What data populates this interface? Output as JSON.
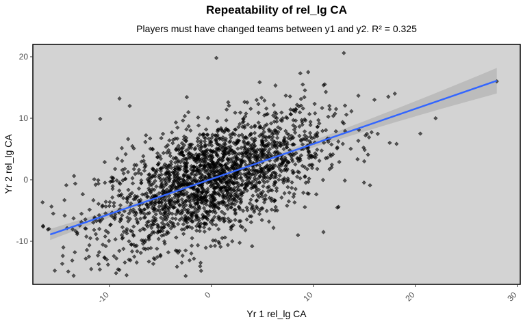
{
  "chart_data": {
    "type": "scatter",
    "title": "Repeatability of rel_lg CA",
    "subtitle": "Players must have changed teams between y1 and y2. R² = 0.325",
    "xlabel": "Yr 1 rel_lg CA",
    "ylabel": "Yr 2 rel_lg CA",
    "xlim": [
      -17.5,
      30.3
    ],
    "ylim": [
      -17.0,
      22.0
    ],
    "xticks": [
      -10,
      0,
      10,
      20,
      30
    ],
    "xtick_labels": [
      "-10",
      "0",
      "10",
      "20",
      "30"
    ],
    "yticks": [
      -10,
      0,
      10,
      20
    ],
    "ytick_labels": [
      "-10",
      "0",
      "10",
      "20"
    ],
    "grid": false,
    "legend": "none",
    "colors": {
      "panel_background": "#d3d3d3",
      "points": "#000000",
      "fit_line": "#3366ff",
      "confidence_band": "#a9a9a9"
    },
    "fit_line": {
      "x": [
        -15.8,
        28.0
      ],
      "y": [
        -8.9,
        16.1
      ]
    },
    "point_cloud": {
      "count": 2200,
      "center": [
        0,
        0
      ],
      "sd_x": 5.5,
      "sd_y": 5.5,
      "correlation": 0.57
    },
    "notable_points": [
      {
        "x": 28.0,
        "y": 16.0
      },
      {
        "x": 22.0,
        "y": 10.0
      },
      {
        "x": 20.5,
        "y": 7.5
      },
      {
        "x": 0.5,
        "y": 19.8
      },
      {
        "x": 13.0,
        "y": 20.6
      },
      {
        "x": 9.5,
        "y": 17.5
      },
      {
        "x": 16.0,
        "y": 13.0
      },
      {
        "x": 18.0,
        "y": 14.0
      },
      {
        "x": -13.5,
        "y": -15.6
      },
      {
        "x": 4.0,
        "y": -10.8
      },
      {
        "x": -1.0,
        "y": -14.8
      },
      {
        "x": -16.5,
        "y": -7.5
      },
      {
        "x": -15.5,
        "y": -5.5
      },
      {
        "x": -9.0,
        "y": 13.2
      },
      {
        "x": -8.0,
        "y": 12.0
      },
      {
        "x": 17.5,
        "y": 6.0
      },
      {
        "x": 11.0,
        "y": -8.5
      },
      {
        "x": 8.5,
        "y": -9.0
      },
      {
        "x": -12.0,
        "y": -12.5
      },
      {
        "x": 15.0,
        "y": 3.0
      }
    ]
  }
}
